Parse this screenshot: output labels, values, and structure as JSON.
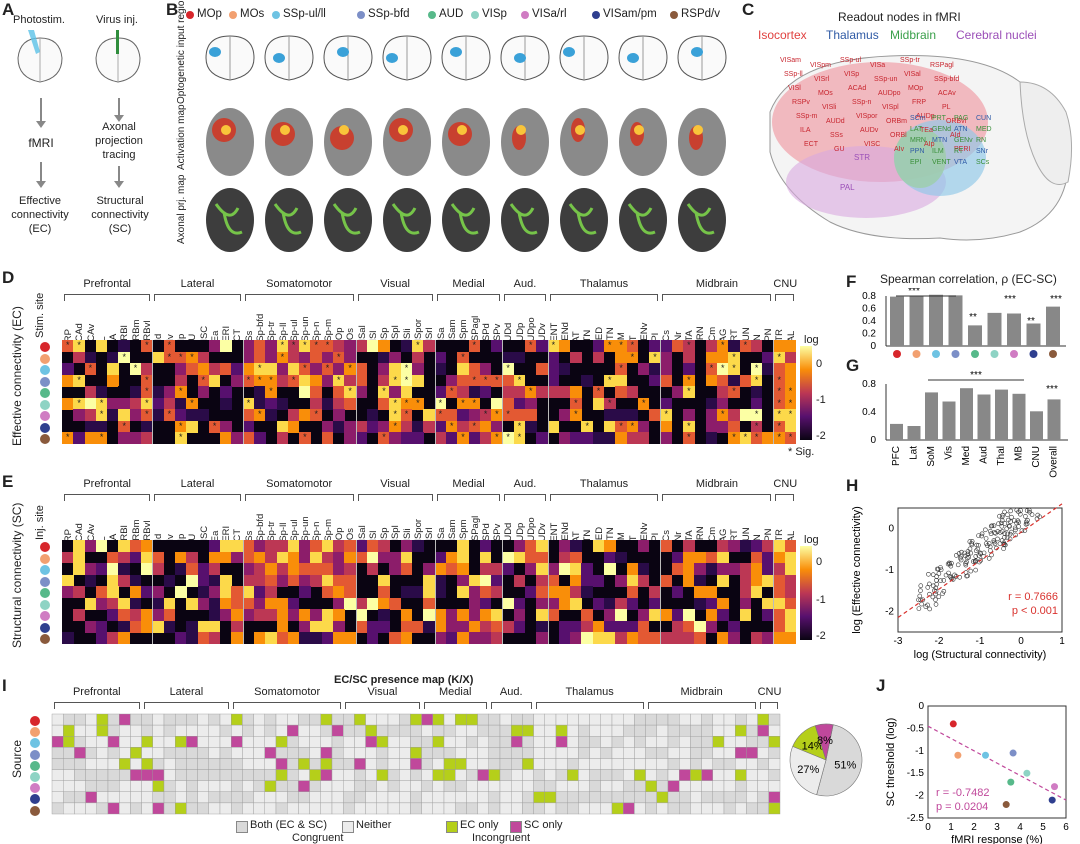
{
  "panels": {
    "a": "A",
    "b": "B",
    "c": "C",
    "d": "D",
    "e": "E",
    "f": "F",
    "g": "G",
    "h": "H",
    "i": "I",
    "j": "J"
  },
  "panelA": {
    "col1_top": "Photostim.",
    "col2_top": "Virus inj.",
    "col1_mid": "fMRI",
    "col2_mid_l1": "Axonal",
    "col2_mid_l2": "projection",
    "col2_mid_l3": "tracing",
    "col1_bot_l1": "Effective",
    "col1_bot_l2": "connectivity",
    "col1_bot_l3": "(EC)",
    "col2_bot_l1": "Structural",
    "col2_bot_l2": "connectivity",
    "col2_bot_l3": "(SC)"
  },
  "panelB": {
    "row_labels": [
      "Optogenetic input region",
      "Activation map",
      "Axonal prj. map"
    ],
    "legend": [
      {
        "label": "MOp",
        "color": "#d7262b"
      },
      {
        "label": "MOs",
        "color": "#f2a070"
      },
      {
        "label": "SSp-ul/ll",
        "color": "#6ec3e3"
      },
      {
        "label": "SSp-bfd",
        "color": "#7c8fc7"
      },
      {
        "label": "AUD",
        "color": "#57b98a"
      },
      {
        "label": "VISp",
        "color": "#8ed3c4"
      },
      {
        "label": "VISa/rl",
        "color": "#d07cc3"
      },
      {
        "label": "VISam/pm",
        "color": "#2f3f8f"
      },
      {
        "label": "RSPd/v",
        "color": "#8a5a3c"
      }
    ]
  },
  "panelC": {
    "title": "Readout nodes in fMRI",
    "groups": [
      {
        "label": "Isocortex",
        "color": "#e0413f"
      },
      {
        "label": "Thalamus",
        "color": "#2f5aa5"
      },
      {
        "label": "Midbrain",
        "color": "#3aa04a"
      },
      {
        "label": "Cerebral nuclei",
        "color": "#9b4fb8"
      }
    ],
    "iso_nodes": [
      "VISam",
      "VISpm",
      "SSp-ul",
      "VISa",
      "SSp-tr",
      "RSPagl",
      "SSp-ll",
      "VISrl",
      "VISp",
      "SSp-un",
      "VISal",
      "SSp-bfd",
      "VISl",
      "MOs",
      "ACAd",
      "AUDpo",
      "MOp",
      "ACAv",
      "RSPv",
      "VISli",
      "SSp-n",
      "VISpl",
      "FRP",
      "PL",
      "SSp-m",
      "AUDd",
      "VISpor",
      "ORBm",
      "AUDp",
      "ORBvl",
      "ILA",
      "SSs",
      "AUDv",
      "ORBl",
      "TEa",
      "AId",
      "ECT",
      "GU",
      "VISC",
      "AIv",
      "AIp",
      "PERI"
    ],
    "thal_nodes": [
      "SCm",
      "PRT",
      "PAG",
      "CUN",
      "LAT",
      "GENd",
      "ATN",
      "MED",
      "MRN",
      "MTN",
      "GENv",
      "RN",
      "PPN",
      "ILM",
      "RT",
      "SNr",
      "EPI",
      "VENT",
      "VTA",
      "SCs"
    ],
    "cnu_nodes": [
      "STR",
      "PAL"
    ]
  },
  "panelD": {
    "ylabel": "Effective connectivity (EC)",
    "stim_site": "Stim. site",
    "groups": [
      "Prefrontal",
      "Lateral",
      "Somatomotor",
      "Visual",
      "Medial",
      "Aud.",
      "Thalamus",
      "Midbrain",
      "CNU"
    ],
    "columns": [
      "FRP",
      "ACAd",
      "ACAv",
      "PL",
      "ILA",
      "ORBl",
      "ORBm",
      "ORBvl",
      "AId",
      "AIv",
      "AIp",
      "GU",
      "VISC",
      "TEa",
      "PERI",
      "ECT",
      "SSs",
      "SSp-bfd",
      "SSp-tr",
      "SSp-ll",
      "SSp-ul",
      "SSp-un",
      "SSp-n",
      "SSp-m",
      "MOp",
      "MOs",
      "VISal",
      "VISl",
      "VISp",
      "VISpl",
      "VISli",
      "VISpor",
      "VISrl",
      "VISa",
      "VISam",
      "VISpm",
      "RSPagl",
      "RSPd",
      "RSPv",
      "AUDd",
      "AUDp",
      "AUDpo",
      "AUDv",
      "VENT",
      "GENd",
      "LAT",
      "ATN",
      "MED",
      "MTN",
      "ILM",
      "RT",
      "GENv",
      "EPI",
      "SCs",
      "SNr",
      "VTA",
      "MRN",
      "SCm",
      "PAG",
      "PRT",
      "CUN",
      "RN",
      "PPN",
      "STR",
      "PAL"
    ],
    "cbar_title": "log",
    "cbar_ticks": [
      "0",
      "-1",
      "-2"
    ],
    "sig_note": "* Sig."
  },
  "panelE": {
    "ylabel": "Structural connectivity (SC)",
    "inj_site": "Inj. site",
    "cbar_title": "log",
    "cbar_ticks": [
      "0",
      "-1",
      "-2"
    ]
  },
  "panelF": {
    "title": "Spearman correlation, ρ (EC-SC)",
    "yticks": [
      "0.8",
      "0.6",
      "0.4",
      "0.2",
      "0"
    ],
    "values": [
      0.79,
      0.8,
      0.82,
      0.81,
      0.33,
      0.53,
      0.52,
      0.36,
      0.63
    ],
    "colors": [
      "#d7262b",
      "#f2a070",
      "#6ec3e3",
      "#7c8fc7",
      "#57b98a",
      "#8ed3c4",
      "#d07cc3",
      "#2f3f8f",
      "#8a5a3c"
    ],
    "stars": [
      "***",
      "**",
      "***",
      "**",
      "***"
    ]
  },
  "panelG": {
    "yticks": [
      "0.8",
      "0.4",
      "0"
    ],
    "categories": [
      "PFC",
      "Lat",
      "SoM",
      "Vis",
      "Med",
      "Aud",
      "Thal",
      "MB",
      "CNU",
      "Overall"
    ],
    "values": [
      0.23,
      0.2,
      0.68,
      0.55,
      0.74,
      0.65,
      0.72,
      0.66,
      0.41,
      0.58
    ],
    "stars": [
      "***",
      "***"
    ]
  },
  "panelH": {
    "xlabel": "log (Structural connectivity)",
    "ylabel": "log (Effective connectivity)",
    "xticks": [
      "-3",
      "-2",
      "-1",
      "0",
      "1"
    ],
    "yticks": [
      "0",
      "-1",
      "-2"
    ],
    "r_text": "r = 0.7666",
    "p_text": "p < 0.001"
  },
  "panelI": {
    "title": "EC/SC presence map (K/X)",
    "groups": [
      "Prefrontal",
      "Lateral",
      "Somatomotor",
      "Visual",
      "Medial",
      "Aud.",
      "Thalamus",
      "Midbrain",
      "CNU"
    ],
    "ylabel": "Source",
    "legend_both": "Both (EC & SC)",
    "legend_neither": "Neither",
    "legend_ec": "EC only",
    "legend_sc": "SC only",
    "congruent": "Congruent",
    "incongruent": "Incongruent",
    "pie": [
      {
        "label": "51%",
        "value": 51,
        "color": "#d9d9d9"
      },
      {
        "label": "27%",
        "value": 27,
        "color": "#ececec"
      },
      {
        "label": "14%",
        "value": 14,
        "color": "#b5cf1a"
      },
      {
        "label": "8%",
        "value": 8,
        "color": "#c0489b"
      }
    ]
  },
  "panelJ": {
    "xlabel": "fMRI response (%)",
    "ylabel": "SC threshold (log)",
    "xticks": [
      "0",
      "1",
      "2",
      "3",
      "4",
      "5",
      "6"
    ],
    "yticks": [
      "0",
      "-0.5",
      "-1",
      "-1.5",
      "-2",
      "-2.5"
    ],
    "r_text": "r = -0.7482",
    "p_text": "p = 0.0204"
  }
}
